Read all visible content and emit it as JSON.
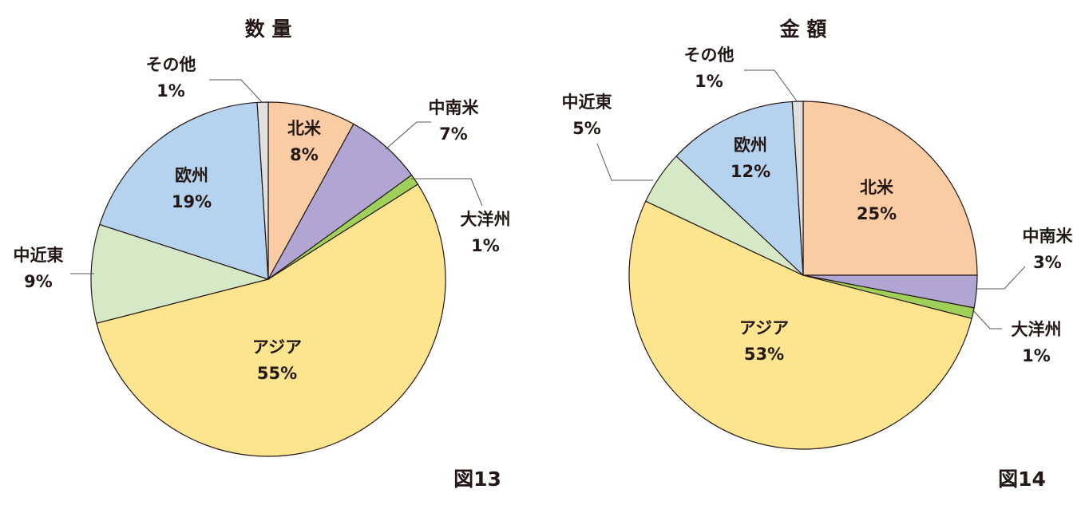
{
  "chart_data": [
    {
      "type": "pie",
      "title": "数 量",
      "caption": "図13",
      "categories": [
        "北米",
        "中南米",
        "大洋州",
        "アジア",
        "中近東",
        "欧州",
        "その他"
      ],
      "values": [
        8,
        7,
        1,
        55,
        9,
        19,
        1
      ],
      "value_labels": [
        "8%",
        "7%",
        "1%",
        "55%",
        "9%",
        "19%",
        "1%"
      ],
      "colors": [
        "#f9cca4",
        "#b1a6d3",
        "#9fd05a",
        "#fde58f",
        "#d6e9c6",
        "#b5d3ee",
        "#e0e0e0"
      ]
    },
    {
      "type": "pie",
      "title": "金 額",
      "caption": "図14",
      "categories": [
        "北米",
        "中南米",
        "大洋州",
        "アジア",
        "中近東",
        "欧州",
        "その他"
      ],
      "values": [
        25,
        3,
        1,
        53,
        5,
        12,
        1
      ],
      "value_labels": [
        "25%",
        "3%",
        "1%",
        "53%",
        "5%",
        "12%",
        "1%"
      ],
      "colors": [
        "#f9cca4",
        "#b1a6d3",
        "#9fd05a",
        "#fde58f",
        "#d6e9c6",
        "#b5d3ee",
        "#e0e0e0"
      ]
    }
  ]
}
